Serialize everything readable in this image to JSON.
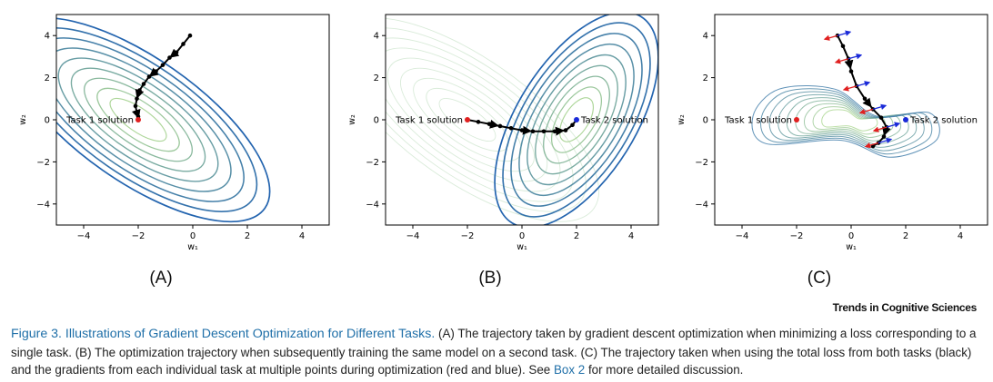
{
  "panels": [
    {
      "id": "A",
      "label": "(A)",
      "xlabel": "w₁",
      "ylabel": "w₂",
      "x_ticks": [
        "−4",
        "−2",
        "0",
        "2",
        "4"
      ],
      "y_ticks": [
        "4",
        "2",
        "0",
        "−2",
        "−4"
      ],
      "annotations": [
        "Task 1 solution"
      ]
    },
    {
      "id": "B",
      "label": "(B)",
      "xlabel": "w₁",
      "ylabel": "w₂",
      "x_ticks": [
        "−4",
        "−2",
        "0",
        "2",
        "4"
      ],
      "y_ticks": [
        "4",
        "2",
        "0",
        "−2",
        "−4"
      ],
      "annotations": [
        "Task 1 solution",
        "Task 2 solution"
      ]
    },
    {
      "id": "C",
      "label": "(C)",
      "xlabel": "w₁",
      "ylabel": "w₂",
      "x_ticks": [
        "−4",
        "−2",
        "0",
        "2",
        "4"
      ],
      "y_ticks": [
        "4",
        "2",
        "0",
        "−2",
        "−4"
      ],
      "annotations": [
        "Task 1 solution",
        "Task 2 solution"
      ]
    }
  ],
  "chart_data": [
    {
      "type": "line",
      "xlim": [
        -5,
        5
      ],
      "ylim": [
        -5,
        5
      ],
      "solutions": [
        {
          "name": "Task 1 solution",
          "x": -2,
          "y": 0,
          "color": "#e02020"
        }
      ],
      "trajectory": [
        [
          -0.1,
          4.0
        ],
        [
          -0.35,
          3.6
        ],
        [
          -0.6,
          3.2
        ],
        [
          -0.85,
          2.95
        ],
        [
          -1.1,
          2.6
        ],
        [
          -1.35,
          2.3
        ],
        [
          -1.6,
          2.05
        ],
        [
          -1.8,
          1.7
        ],
        [
          -1.95,
          1.4
        ],
        [
          -2.05,
          1.0
        ],
        [
          -2.1,
          0.65
        ],
        [
          -2.05,
          0.35
        ],
        [
          -2.0,
          0.15
        ]
      ]
    },
    {
      "type": "line",
      "xlim": [
        -5,
        5
      ],
      "ylim": [
        -5,
        5
      ],
      "solutions": [
        {
          "name": "Task 1 solution",
          "x": -2,
          "y": 0,
          "color": "#e02020"
        },
        {
          "name": "Task 2 solution",
          "x": 2,
          "y": 0,
          "color": "#1a2ad8"
        }
      ],
      "trajectory": [
        [
          -2.0,
          0.0
        ],
        [
          -1.6,
          -0.1
        ],
        [
          -1.2,
          -0.2
        ],
        [
          -0.8,
          -0.3
        ],
        [
          -0.4,
          -0.4
        ],
        [
          0.0,
          -0.5
        ],
        [
          0.4,
          -0.55
        ],
        [
          0.8,
          -0.55
        ],
        [
          1.2,
          -0.55
        ],
        [
          1.6,
          -0.5
        ],
        [
          1.85,
          -0.25
        ],
        [
          2.0,
          0.0
        ]
      ]
    },
    {
      "type": "line",
      "xlim": [
        -5,
        5
      ],
      "ylim": [
        -5,
        5
      ],
      "solutions": [
        {
          "name": "Task 1 solution",
          "x": -2,
          "y": 0,
          "color": "#e02020"
        },
        {
          "name": "Task 2 solution",
          "x": 2,
          "y": 0,
          "color": "#1a2ad8"
        }
      ],
      "trajectory": [
        [
          -0.5,
          4.0
        ],
        [
          -0.3,
          3.5
        ],
        [
          -0.1,
          2.9
        ],
        [
          0.0,
          2.3
        ],
        [
          0.2,
          1.6
        ],
        [
          0.5,
          1.0
        ],
        [
          0.8,
          0.5
        ],
        [
          1.1,
          0.1
        ],
        [
          1.3,
          -0.35
        ],
        [
          1.2,
          -0.8
        ],
        [
          1.0,
          -1.1
        ],
        [
          0.8,
          -1.25
        ]
      ]
    }
  ],
  "branding": "Trends in Cognitive Sciences",
  "caption": {
    "figure_title": "Figure 3. Illustrations of Gradient Descent Optimization for Different Tasks.",
    "text_part1": " (A) The trajectory taken by gradient descent optimization when minimizing a loss corresponding to a single task. (B) The optimization trajectory when subsequently training the same model on a second task. (C) The trajectory taken when using the total loss from both tasks (black) and the gradients from each individual task at multiple points during optimization (red and blue). See ",
    "link_text": "Box 2",
    "text_part2": " for more detailed discussion."
  }
}
